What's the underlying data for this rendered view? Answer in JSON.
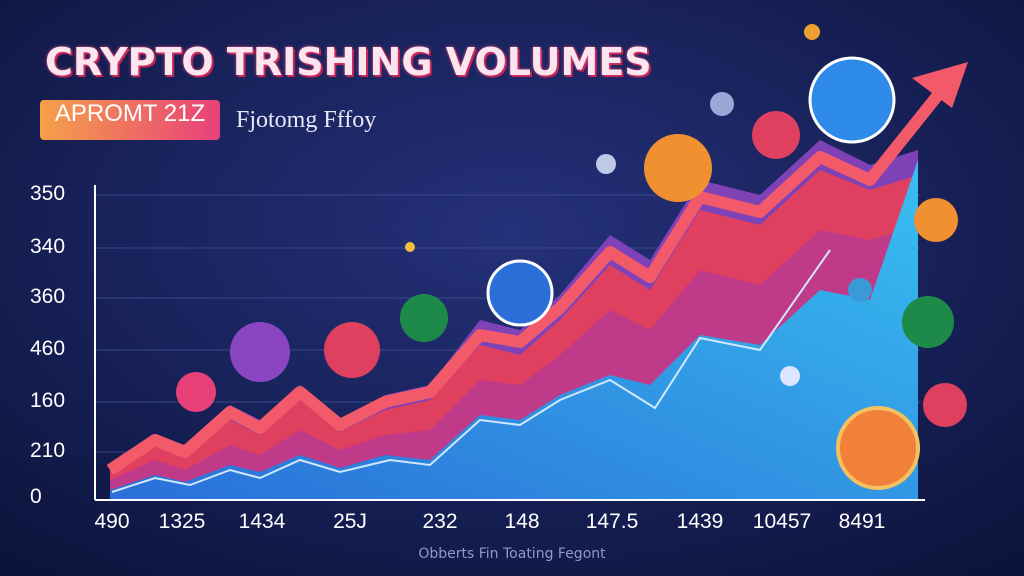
{
  "header": {
    "title": "CRYPTO TRISHING VOLUMES",
    "badge": "APROMT 21Z",
    "subtitle": "Fjotomg Fffoy"
  },
  "y_labels": [
    "350",
    "340",
    "360",
    "460",
    "160",
    "210",
    "0"
  ],
  "x_labels": [
    "490",
    "1325",
    "1434",
    "25J",
    "232",
    "148",
    "147.5",
    "1439",
    "10457",
    "8491"
  ],
  "footer": "Obberts Fin Toating Fegont"
}
